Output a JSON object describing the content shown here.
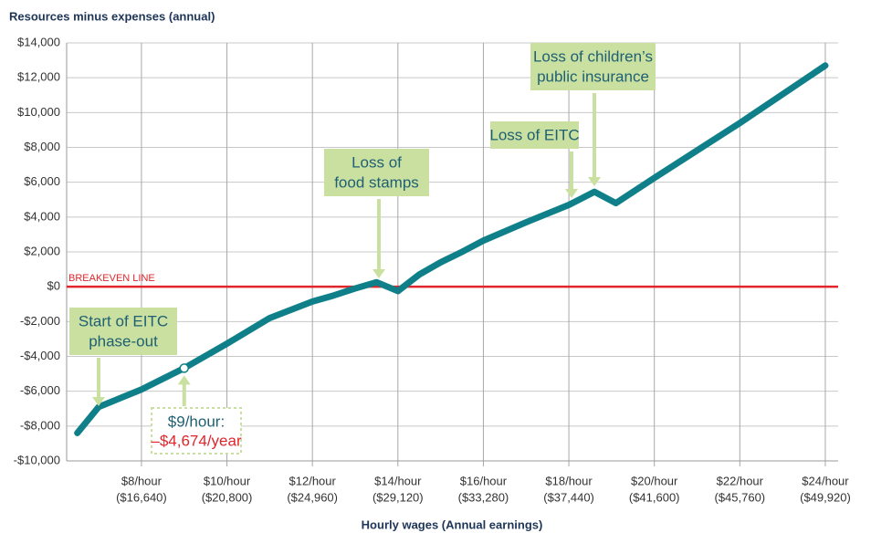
{
  "chart_data": {
    "type": "line",
    "title": "Resources minus expenses (annual)",
    "x_label": "Hourly wages (Annual earnings)",
    "x": [
      6.5,
      7,
      8,
      9,
      10,
      11,
      12,
      12.5,
      13,
      13.5,
      14,
      14.5,
      15,
      15.5,
      16,
      17,
      18,
      18.6,
      19.1,
      20,
      22,
      24
    ],
    "series": [
      {
        "color": "#0f8089",
        "values": [
          -8400,
          -6900,
          -5900,
          -4674,
          -3270,
          -1800,
          -850,
          -500,
          -100,
          260,
          -250,
          700,
          1400,
          2000,
          2650,
          3700,
          4700,
          5450,
          4800,
          6250,
          9400,
          12700
        ]
      }
    ],
    "xlim": [
      6.25,
      24.3
    ],
    "ylim": [
      -10000,
      14000
    ],
    "xticks": [
      {
        "value": 8,
        "label": "$8/hour"
      },
      {
        "value": 10,
        "label": "$10/hour"
      },
      {
        "value": 12,
        "label": "$12/hour"
      },
      {
        "value": 14,
        "label": "$14/hour"
      },
      {
        "value": 16,
        "label": "$16/hour"
      },
      {
        "value": 18,
        "label": "$18/hour"
      },
      {
        "value": 20,
        "label": "$20/hour"
      },
      {
        "value": 22,
        "label": "$22/hour"
      },
      {
        "value": 24,
        "label": "$24/hour"
      }
    ],
    "xtick_sublabels": [
      "($16,640)",
      "($20,800)",
      "($24,960)",
      "($29,120)",
      "($33,280)",
      "($37,440)",
      "($41,600)",
      "($45,760)",
      "($49,920)"
    ],
    "yticks": [
      {
        "value": -10000,
        "label": "-$10,000"
      },
      {
        "value": -8000,
        "label": "-$8,000"
      },
      {
        "value": -6000,
        "label": "-$6,000"
      },
      {
        "value": -4000,
        "label": "-$4,000"
      },
      {
        "value": -2000,
        "label": "-$2,000"
      },
      {
        "value": 0,
        "label": "$0"
      },
      {
        "value": 2000,
        "label": "$2,000"
      },
      {
        "value": 4000,
        "label": "$4,000"
      },
      {
        "value": 6000,
        "label": "$6,000"
      },
      {
        "value": 8000,
        "label": "$8,000"
      },
      {
        "value": 10000,
        "label": "$10,000"
      },
      {
        "value": 12000,
        "label": "$12,000"
      },
      {
        "value": 14000,
        "label": "$14,000"
      }
    ],
    "grid": true,
    "breakeven": {
      "value": 0,
      "label": "BREAKEVEN LINE",
      "color": "#e0262b"
    },
    "highlight": {
      "x": 9,
      "y": -4674,
      "lines": [
        "$9/hour:",
        "–$4,674/year"
      ]
    },
    "annotations": [
      {
        "lines": [
          "Start of EITC",
          "phase-out"
        ]
      },
      {
        "lines": [
          "Loss of",
          "food stamps"
        ]
      },
      {
        "lines": [
          "Loss of EITC"
        ]
      },
      {
        "lines": [
          "Loss of children’s",
          "public insurance"
        ]
      }
    ]
  }
}
